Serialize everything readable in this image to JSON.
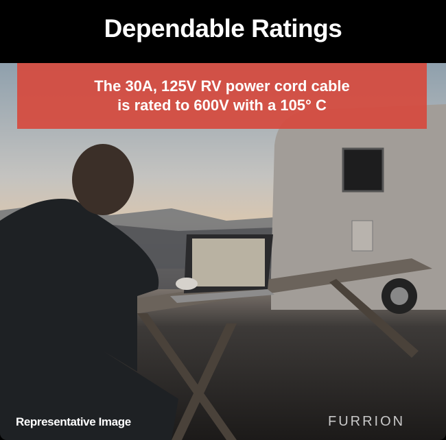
{
  "header": {
    "title": "Dependable Ratings"
  },
  "banner": {
    "line1": "The 30A, 125V RV power cord cable",
    "line2": "is rated to 600V with a 105° C"
  },
  "footer": {
    "caption": "Representative Image",
    "logo": "FURRION"
  },
  "colors": {
    "header_bg": "#000000",
    "banner_bg": "#d64a3e",
    "text": "#ffffff"
  }
}
